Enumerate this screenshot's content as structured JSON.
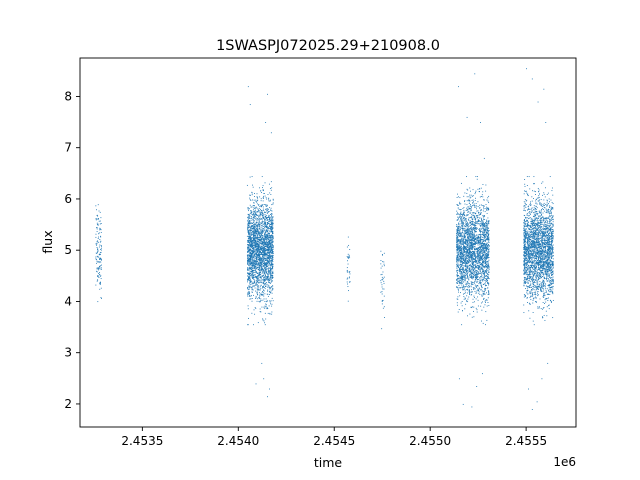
{
  "chart_data": {
    "type": "scatter",
    "title": "1SWASPJ072025.29+210908.0",
    "xlabel": "time",
    "ylabel": "flux",
    "x_offset_label": "1e6",
    "xlim": [
      2453175,
      2455760
    ],
    "ylim": [
      1.55,
      8.75
    ],
    "x_ticks": [
      {
        "value": 2453500,
        "label": "2.4535"
      },
      {
        "value": 2454000,
        "label": "2.4540"
      },
      {
        "value": 2454500,
        "label": "2.4545"
      },
      {
        "value": 2455000,
        "label": "2.4550"
      },
      {
        "value": 2455500,
        "label": "2.4555"
      }
    ],
    "y_ticks": [
      {
        "value": 2,
        "label": "2"
      },
      {
        "value": 3,
        "label": "3"
      },
      {
        "value": 4,
        "label": "4"
      },
      {
        "value": 5,
        "label": "5"
      },
      {
        "value": 6,
        "label": "6"
      },
      {
        "value": 7,
        "label": "7"
      },
      {
        "value": 8,
        "label": "8"
      }
    ],
    "grid": false,
    "marker_color": "#1f77b4",
    "series": [
      {
        "clusters": [
          {
            "x_start": 2453255,
            "x_end": 2453285,
            "y_center": 5.0,
            "y_spread": 0.75,
            "n": 140
          },
          {
            "x_start": 2454045,
            "x_end": 2454180,
            "y_center": 5.0,
            "y_spread": 0.85,
            "n": 2600
          },
          {
            "x_start": 2454565,
            "x_end": 2454580,
            "y_center": 4.6,
            "y_spread": 0.6,
            "n": 35
          },
          {
            "x_start": 2454740,
            "x_end": 2454760,
            "y_center": 4.4,
            "y_spread": 0.6,
            "n": 40
          },
          {
            "x_start": 2455135,
            "x_end": 2455305,
            "y_center": 5.0,
            "y_spread": 0.85,
            "n": 2600
          },
          {
            "x_start": 2455485,
            "x_end": 2455640,
            "y_center": 5.0,
            "y_spread": 0.85,
            "n": 2600
          }
        ],
        "outliers": [
          [
            2454050,
            8.2
          ],
          [
            2454060,
            7.85
          ],
          [
            2454150,
            8.05
          ],
          [
            2454140,
            7.5
          ],
          [
            2454170,
            7.3
          ],
          [
            2454130,
            2.5
          ],
          [
            2454160,
            2.3
          ],
          [
            2454150,
            2.15
          ],
          [
            2454090,
            2.4
          ],
          [
            2454120,
            2.8
          ],
          [
            2455145,
            8.2
          ],
          [
            2455190,
            7.6
          ],
          [
            2455230,
            8.45
          ],
          [
            2455260,
            7.5
          ],
          [
            2455280,
            6.8
          ],
          [
            2455150,
            2.5
          ],
          [
            2455170,
            2.0
          ],
          [
            2455215,
            1.95
          ],
          [
            2455240,
            2.35
          ],
          [
            2455270,
            2.6
          ],
          [
            2455500,
            8.55
          ],
          [
            2455530,
            8.35
          ],
          [
            2455560,
            7.9
          ],
          [
            2455590,
            8.15
          ],
          [
            2455600,
            7.5
          ],
          [
            2455510,
            2.3
          ],
          [
            2455530,
            1.9
          ],
          [
            2455555,
            2.05
          ],
          [
            2455580,
            2.5
          ],
          [
            2455610,
            2.8
          ]
        ]
      }
    ]
  }
}
